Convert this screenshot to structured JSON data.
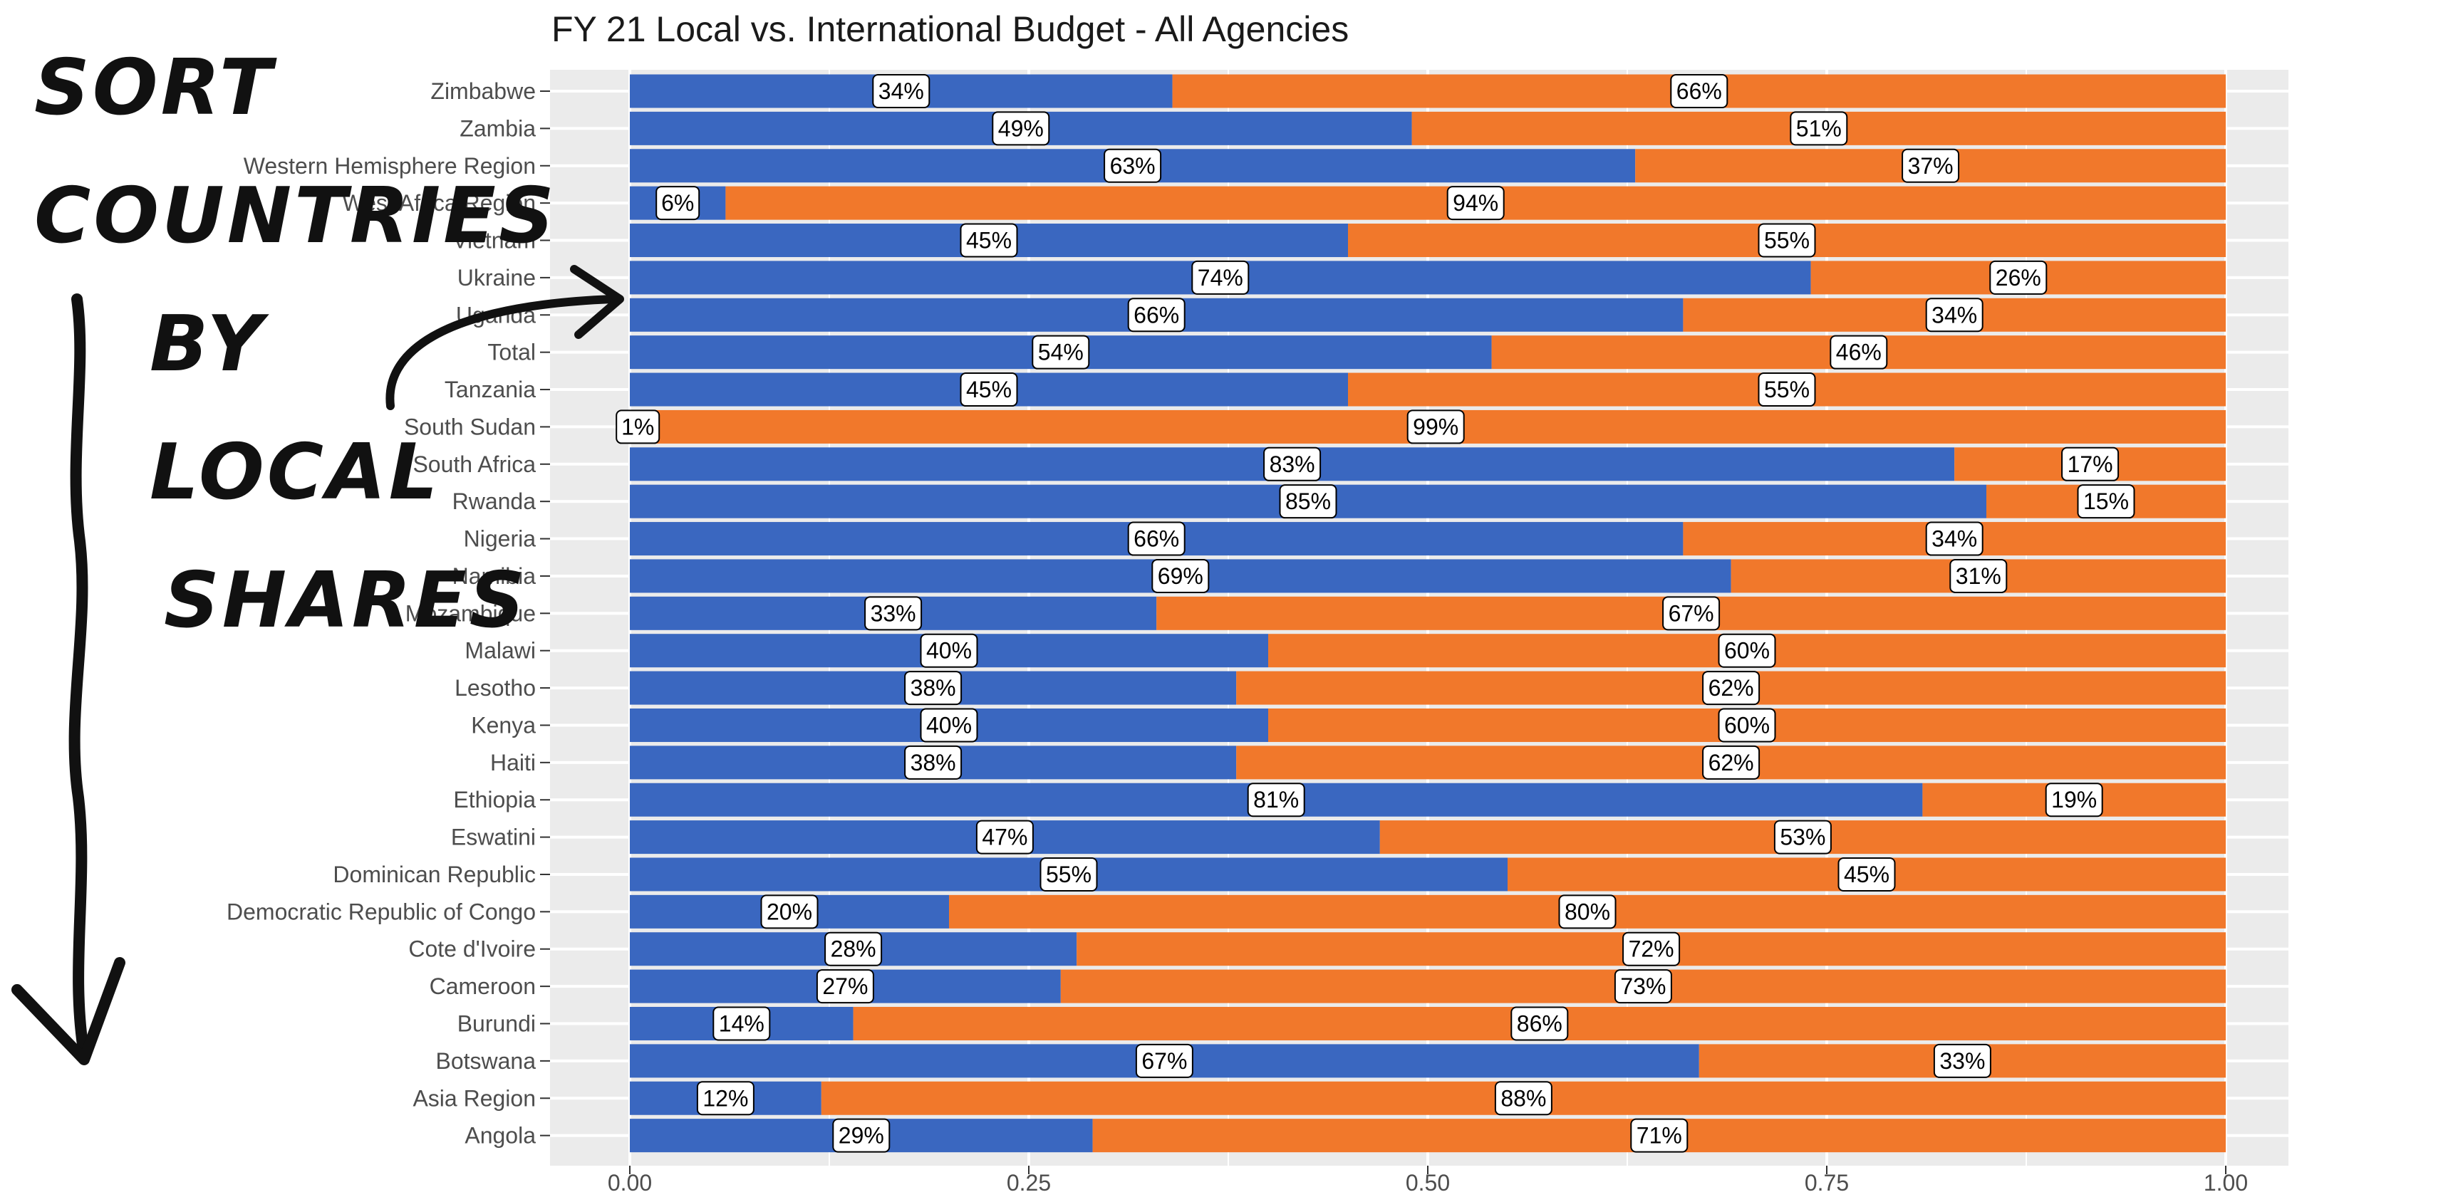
{
  "chart_data": {
    "type": "bar",
    "orientation": "horizontal",
    "stacked": true,
    "title": "FY 21 Local vs. International Budget - All Agencies",
    "xlabel": "",
    "ylabel": "",
    "xlim": [
      0,
      1
    ],
    "x_ticks": [
      "0.00",
      "0.25",
      "0.50",
      "0.75",
      "1.00"
    ],
    "grid": true,
    "legend": "none",
    "categories": [
      "Zimbabwe",
      "Zambia",
      "Western Hemisphere Region",
      "West Africa Region",
      "Vietnam",
      "Ukraine",
      "Uganda",
      "Total",
      "Tanzania",
      "South Sudan",
      "South Africa",
      "Rwanda",
      "Nigeria",
      "Namibia",
      "Mozambique",
      "Malawi",
      "Lesotho",
      "Kenya",
      "Haiti",
      "Ethiopia",
      "Eswatini",
      "Dominican Republic",
      "Democratic Republic of Congo",
      "Cote d'Ivoire",
      "Cameroon",
      "Burundi",
      "Botswana",
      "Asia Region",
      "Angola"
    ],
    "series": [
      {
        "color": "#3a67c0",
        "values": [
          0.34,
          0.49,
          0.63,
          0.06,
          0.45,
          0.74,
          0.66,
          0.54,
          0.45,
          0.01,
          0.83,
          0.85,
          0.66,
          0.69,
          0.33,
          0.4,
          0.38,
          0.4,
          0.38,
          0.81,
          0.47,
          0.55,
          0.2,
          0.28,
          0.27,
          0.14,
          0.67,
          0.12,
          0.29
        ],
        "labels": [
          "34%",
          "49%",
          "63%",
          "6%",
          "45%",
          "74%",
          "66%",
          "54%",
          "45%",
          "1%",
          "83%",
          "85%",
          "66%",
          "69%",
          "33%",
          "40%",
          "38%",
          "40%",
          "38%",
          "81%",
          "47%",
          "55%",
          "20%",
          "28%",
          "27%",
          "14%",
          "67%",
          "12%",
          "29%"
        ]
      },
      {
        "color": "#f1782b",
        "values": [
          0.66,
          0.51,
          0.37,
          0.94,
          0.55,
          0.26,
          0.34,
          0.46,
          0.55,
          0.99,
          0.17,
          0.15,
          0.34,
          0.31,
          0.67,
          0.6,
          0.62,
          0.6,
          0.62,
          0.19,
          0.53,
          0.45,
          0.8,
          0.72,
          0.73,
          0.86,
          0.33,
          0.88,
          0.71
        ],
        "labels": [
          "66%",
          "51%",
          "37%",
          "94%",
          "55%",
          "26%",
          "34%",
          "46%",
          "55%",
          "99%",
          "17%",
          "15%",
          "34%",
          "31%",
          "67%",
          "60%",
          "62%",
          "60%",
          "62%",
          "19%",
          "53%",
          "45%",
          "80%",
          "72%",
          "73%",
          "86%",
          "33%",
          "88%",
          "71%"
        ]
      }
    ],
    "annotation": {
      "lines": [
        "SORT",
        "COUNTRIES",
        "BY",
        "LOCAL",
        "SHARES"
      ]
    },
    "colors": {
      "panel_bg": "#ebebeb",
      "gridline": "#ffffff",
      "local": "#3a67c0",
      "international": "#f1782b",
      "label_box": "#ffffff",
      "label_border": "#000000",
      "annotation_ink": "#111111"
    }
  }
}
